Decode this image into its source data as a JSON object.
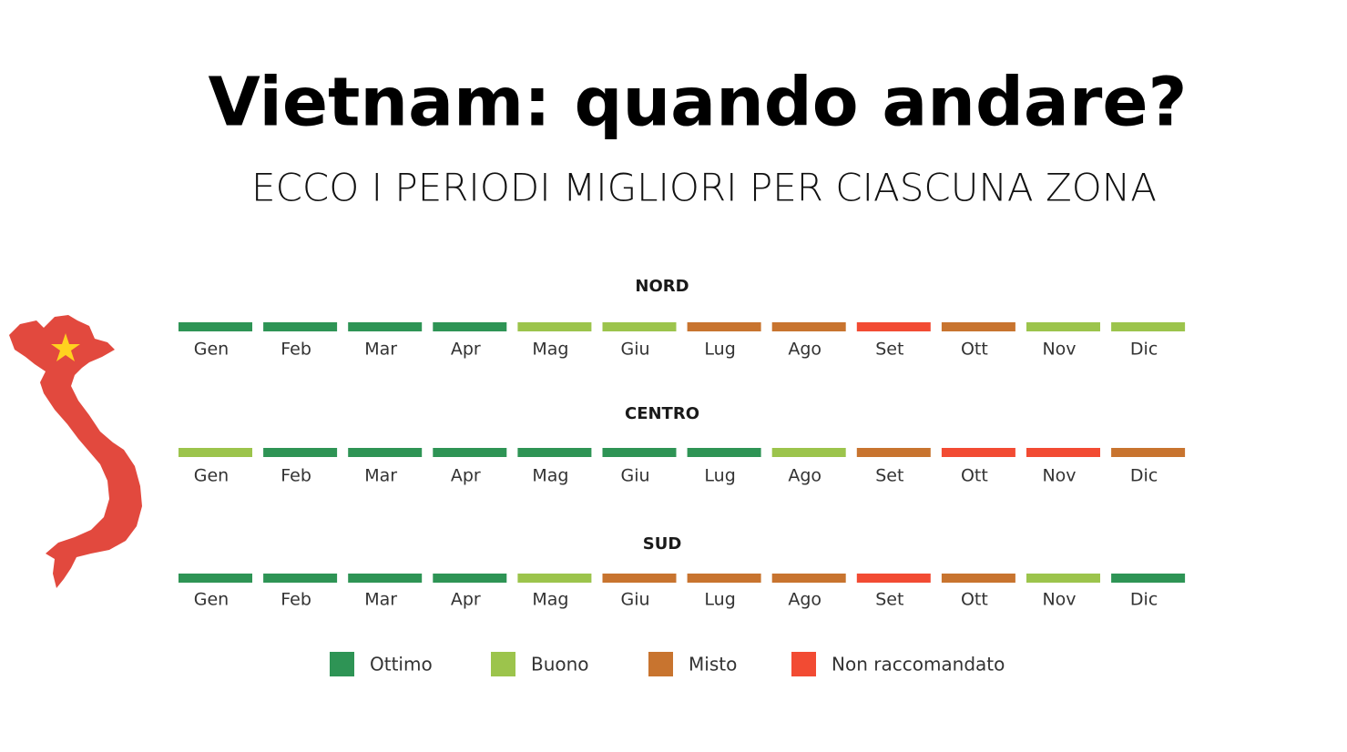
{
  "header": {
    "title": "Vietnam: quando andare?",
    "subtitle": "ECCO I PERIODI MIGLIORI PER CIASCUNA ZONA"
  },
  "legend": [
    {
      "label": "Ottimo",
      "color": "#2e9455"
    },
    {
      "label": "Buono",
      "color": "#9cc44c"
    },
    {
      "label": "Misto",
      "color": "#c8742f"
    },
    {
      "label": "Non raccomandato",
      "color": "#f24b33"
    }
  ],
  "zones": [
    {
      "name": "NORD",
      "months": [
        {
          "label": "Gen",
          "rating": "Ottimo"
        },
        {
          "label": "Feb",
          "rating": "Ottimo"
        },
        {
          "label": "Mar",
          "rating": "Ottimo"
        },
        {
          "label": "Apr",
          "rating": "Ottimo"
        },
        {
          "label": "Mag",
          "rating": "Buono"
        },
        {
          "label": "Giu",
          "rating": "Buono"
        },
        {
          "label": "Lug",
          "rating": "Misto"
        },
        {
          "label": "Ago",
          "rating": "Misto"
        },
        {
          "label": "Set",
          "rating": "Non raccomandato"
        },
        {
          "label": "Ott",
          "rating": "Misto"
        },
        {
          "label": "Nov",
          "rating": "Buono"
        },
        {
          "label": "Dic",
          "rating": "Buono"
        }
      ]
    },
    {
      "name": "CENTRO",
      "months": [
        {
          "label": "Gen",
          "rating": "Buono"
        },
        {
          "label": "Feb",
          "rating": "Ottimo"
        },
        {
          "label": "Mar",
          "rating": "Ottimo"
        },
        {
          "label": "Apr",
          "rating": "Ottimo"
        },
        {
          "label": "Mag",
          "rating": "Ottimo"
        },
        {
          "label": "Giu",
          "rating": "Ottimo"
        },
        {
          "label": "Lug",
          "rating": "Ottimo"
        },
        {
          "label": "Ago",
          "rating": "Buono"
        },
        {
          "label": "Set",
          "rating": "Misto"
        },
        {
          "label": "Ott",
          "rating": "Non raccomandato"
        },
        {
          "label": "Nov",
          "rating": "Non raccomandato"
        },
        {
          "label": "Dic",
          "rating": "Misto"
        }
      ]
    },
    {
      "name": "SUD",
      "months": [
        {
          "label": "Gen",
          "rating": "Ottimo"
        },
        {
          "label": "Feb",
          "rating": "Ottimo"
        },
        {
          "label": "Mar",
          "rating": "Ottimo"
        },
        {
          "label": "Apr",
          "rating": "Ottimo"
        },
        {
          "label": "Mag",
          "rating": "Buono"
        },
        {
          "label": "Giu",
          "rating": "Misto"
        },
        {
          "label": "Lug",
          "rating": "Misto"
        },
        {
          "label": "Ago",
          "rating": "Misto"
        },
        {
          "label": "Set",
          "rating": "Non raccomandato"
        },
        {
          "label": "Ott",
          "rating": "Misto"
        },
        {
          "label": "Nov",
          "rating": "Buono"
        },
        {
          "label": "Dic",
          "rating": "Ottimo"
        }
      ]
    }
  ]
}
